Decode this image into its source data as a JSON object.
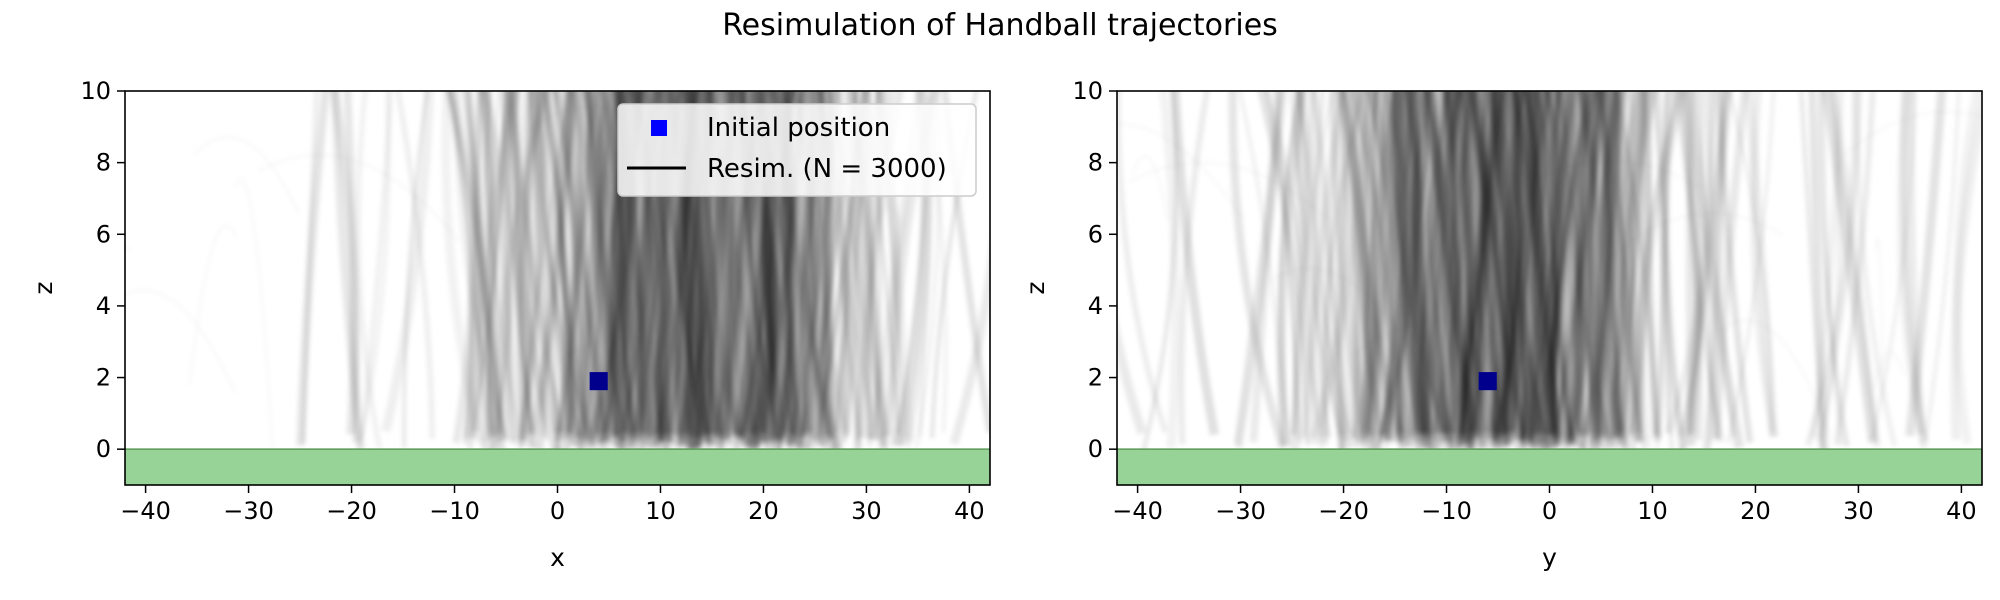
{
  "figure": {
    "title": "Resimulation of Handball trajectories"
  },
  "colors": {
    "ground": "#97d296",
    "ground_edge": "#5a9a5a",
    "marker": "#0000ff",
    "trajectory": "#000000"
  },
  "chart_data": [
    {
      "type": "line",
      "title": "",
      "xlabel": "x",
      "ylabel": "z",
      "xlim": [
        -42,
        42
      ],
      "ylim": [
        -1,
        10
      ],
      "xticks": [
        -40,
        -30,
        -20,
        -10,
        0,
        10,
        20,
        30,
        40
      ],
      "yticks": [
        0,
        2,
        4,
        6,
        8,
        10
      ],
      "grid": false,
      "legend": {
        "position": "top-right",
        "entries": [
          {
            "label": "Initial position",
            "style": "blue-square-marker"
          },
          {
            "label": "Resim. (N = 3000)",
            "style": "black-line"
          }
        ]
      },
      "ground": {
        "z_from": -1,
        "z_to": 0
      },
      "initial_position": {
        "x": 4,
        "z": 1.9
      },
      "trajectory_density": {
        "center": 13,
        "spread": 10,
        "range": [
          -25,
          41
        ]
      },
      "series": [
        {
          "name": "Initial position",
          "type": "scatter",
          "points": [
            {
              "x": 4,
              "y": 1.9
            }
          ]
        },
        {
          "name": "Resim. (N = 3000)",
          "type": "line"
        }
      ]
    },
    {
      "type": "line",
      "title": "",
      "xlabel": "y",
      "ylabel": "z",
      "xlim": [
        -42,
        42
      ],
      "ylim": [
        -1,
        10
      ],
      "xticks": [
        -40,
        -30,
        -20,
        -10,
        0,
        10,
        20,
        30,
        40
      ],
      "yticks": [
        0,
        2,
        4,
        6,
        8,
        10
      ],
      "grid": false,
      "ground": {
        "z_from": -1,
        "z_to": 0
      },
      "initial_position": {
        "x": -6,
        "z": 1.9
      },
      "trajectory_density": {
        "center": -5,
        "spread": 8.5,
        "range": [
          -40,
          41
        ]
      },
      "series": [
        {
          "name": "Initial position",
          "type": "scatter",
          "points": [
            {
              "x": -6,
              "y": 1.9
            }
          ]
        },
        {
          "name": "Resim. (N = 3000)",
          "type": "line"
        }
      ]
    }
  ]
}
